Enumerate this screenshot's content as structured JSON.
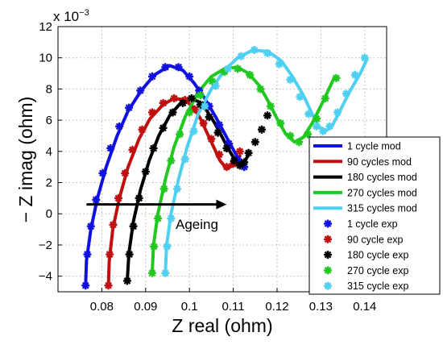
{
  "chart_data": {
    "type": "line",
    "title": "",
    "xlabel": "Z real (ohm)",
    "ylabel": "− Z imag (ohm)",
    "y_scale_label": "x 10",
    "y_scale_exponent": "−3",
    "xlim": [
      0.07,
      0.145
    ],
    "ylim": [
      -5,
      12
    ],
    "x_ticks": [
      0.08,
      0.09,
      0.1,
      0.11,
      0.12,
      0.13,
      0.14
    ],
    "x_tick_labels": [
      "0.08",
      "0.09",
      "0.1",
      "0.11",
      "0.12",
      "0.13",
      "0.14"
    ],
    "y_ticks": [
      -4,
      -2,
      0,
      2,
      4,
      6,
      8,
      10,
      12
    ],
    "y_tick_labels": [
      "−4",
      "−2",
      "0",
      "2",
      "4",
      "6",
      "8",
      "10",
      "12"
    ],
    "grid": true,
    "legend_position": "right",
    "annotation": {
      "text": "Ageing",
      "arrow_from": [
        0.0765,
        0.6
      ],
      "arrow_to": [
        0.1085,
        0.6
      ]
    },
    "series": [
      {
        "name": "1 cycle mod",
        "kind": "model",
        "color": "#1010e0",
        "x": [
          0.0763,
          0.0765,
          0.0775,
          0.079,
          0.081,
          0.0835,
          0.086,
          0.089,
          0.092,
          0.0955,
          0.0985,
          0.101,
          0.1035,
          0.106,
          0.1085,
          0.111,
          0.1125
        ],
        "y": [
          -4.6,
          -3.0,
          -1.0,
          1.0,
          3.0,
          5.0,
          6.6,
          7.9,
          8.9,
          9.5,
          9.2,
          8.4,
          7.4,
          6.2,
          4.9,
          3.6,
          3.0
        ]
      },
      {
        "name": "90 cycles mod",
        "kind": "model",
        "color": "#c01010",
        "x": [
          0.0815,
          0.0817,
          0.0825,
          0.084,
          0.086,
          0.0885,
          0.091,
          0.094,
          0.0965,
          0.099,
          0.101,
          0.1025,
          0.104,
          0.1055,
          0.107,
          0.1085,
          0.11,
          0.1115
        ],
        "y": [
          -4.6,
          -3.0,
          -1.0,
          1.0,
          3.0,
          4.8,
          6.1,
          7.0,
          7.4,
          7.3,
          6.8,
          6.1,
          5.2,
          4.3,
          3.4,
          2.9,
          3.1,
          3.7
        ]
      },
      {
        "name": "180 cycles mod",
        "kind": "model",
        "color": "#000000",
        "x": [
          0.0858,
          0.0862,
          0.0872,
          0.0888,
          0.0908,
          0.093,
          0.0955,
          0.098,
          0.1,
          0.102,
          0.104,
          0.1058,
          0.1075,
          0.109,
          0.1105,
          0.1115,
          0.1125,
          0.1135
        ],
        "y": [
          -4.3,
          -2.5,
          -0.5,
          1.5,
          3.4,
          5.0,
          6.3,
          7.1,
          7.4,
          7.2,
          6.6,
          5.8,
          4.9,
          4.1,
          3.4,
          3.1,
          3.3,
          3.8
        ]
      },
      {
        "name": "270 cycles mod",
        "kind": "model",
        "color": "#20c820",
        "x": [
          0.0915,
          0.0918,
          0.0928,
          0.0945,
          0.0965,
          0.099,
          0.102,
          0.105,
          0.108,
          0.111,
          0.1135,
          0.116,
          0.118,
          0.12,
          0.122,
          0.124,
          0.126,
          0.128,
          0.1305,
          0.133
        ],
        "y": [
          -3.8,
          -2.0,
          0.0,
          2.2,
          4.3,
          6.2,
          7.8,
          8.8,
          9.3,
          9.4,
          9.0,
          8.2,
          7.2,
          6.1,
          5.1,
          4.6,
          4.9,
          5.8,
          7.2,
          8.7
        ]
      },
      {
        "name": "315 cycles mod",
        "kind": "model",
        "color": "#50d0f0",
        "x": [
          0.0945,
          0.0948,
          0.0958,
          0.0975,
          0.0995,
          0.102,
          0.105,
          0.108,
          0.111,
          0.1145,
          0.118,
          0.121,
          0.1235,
          0.126,
          0.128,
          0.1295,
          0.131,
          0.1325,
          0.134,
          0.1365,
          0.139,
          0.1405
        ],
        "y": [
          -3.8,
          -2.0,
          0.0,
          2.2,
          4.3,
          6.4,
          8.0,
          9.2,
          10.0,
          10.5,
          10.4,
          9.8,
          8.8,
          7.6,
          6.4,
          5.6,
          5.3,
          5.6,
          6.4,
          7.8,
          9.0,
          9.9
        ]
      },
      {
        "name": "1 cycle exp",
        "kind": "exp",
        "color": "#1010e0",
        "x": [
          0.0763,
          0.0767,
          0.0775,
          0.0787,
          0.0802,
          0.082,
          0.084,
          0.0862,
          0.0888,
          0.0915,
          0.0945,
          0.0975,
          0.1,
          0.1022,
          0.1045,
          0.1068,
          0.109,
          0.111,
          0.1125
        ],
        "y": [
          -4.6,
          -2.6,
          -0.8,
          0.9,
          2.6,
          4.2,
          5.6,
          6.8,
          7.9,
          8.8,
          9.4,
          9.4,
          8.8,
          7.9,
          6.9,
          5.7,
          4.5,
          3.5,
          3.0
        ]
      },
      {
        "name": "90 cycle exp",
        "kind": "exp",
        "color": "#c01010",
        "x": [
          0.0815,
          0.0818,
          0.0826,
          0.0838,
          0.0853,
          0.087,
          0.0892,
          0.0915,
          0.094,
          0.0965,
          0.099,
          0.1012,
          0.1032,
          0.105,
          0.1068,
          0.1085,
          0.11,
          0.1115
        ],
        "y": [
          -4.6,
          -2.6,
          -0.7,
          1.0,
          2.6,
          4.1,
          5.4,
          6.5,
          7.1,
          7.4,
          7.3,
          6.7,
          5.8,
          4.8,
          3.8,
          3.0,
          3.2,
          4.0
        ]
      },
      {
        "name": "180 cycle exp",
        "kind": "exp",
        "color": "#000000",
        "x": [
          0.0858,
          0.0863,
          0.0872,
          0.0885,
          0.09,
          0.0918,
          0.094,
          0.0962,
          0.0985,
          0.1005,
          0.1025,
          0.1045,
          0.1065,
          0.1085,
          0.1102,
          0.1115,
          0.1125,
          0.1135,
          0.115,
          0.1165,
          0.1178
        ],
        "y": [
          -4.3,
          -2.6,
          -0.8,
          1.0,
          2.7,
          4.2,
          5.5,
          6.5,
          7.1,
          7.4,
          7.0,
          6.2,
          5.2,
          4.2,
          3.4,
          3.1,
          3.3,
          3.9,
          4.6,
          5.4,
          6.3
        ]
      },
      {
        "name": "270 cycle exp",
        "kind": "exp",
        "color": "#20c820",
        "x": [
          0.0915,
          0.0919,
          0.0928,
          0.0942,
          0.0958,
          0.0978,
          0.1,
          0.1025,
          0.1052,
          0.108,
          0.111,
          0.1138,
          0.1162,
          0.1185,
          0.1208,
          0.123,
          0.125,
          0.127,
          0.129,
          0.131,
          0.1335
        ],
        "y": [
          -3.8,
          -2.1,
          -0.3,
          1.6,
          3.4,
          5.1,
          6.5,
          7.6,
          8.5,
          9.1,
          9.3,
          8.9,
          8.0,
          6.9,
          5.8,
          5.0,
          4.6,
          5.1,
          6.1,
          7.4,
          8.7
        ]
      },
      {
        "name": "315 cycle exp",
        "kind": "exp",
        "color": "#50d0f0",
        "x": [
          0.0945,
          0.0949,
          0.0958,
          0.0972,
          0.099,
          0.101,
          0.1035,
          0.106,
          0.1088,
          0.1118,
          0.1148,
          0.1178,
          0.1205,
          0.123,
          0.1252,
          0.1272,
          0.129,
          0.1305,
          0.132,
          0.1338,
          0.1358,
          0.1378,
          0.14
        ],
        "y": [
          -3.8,
          -2.1,
          -0.3,
          1.6,
          3.5,
          5.3,
          6.9,
          8.2,
          9.3,
          10.1,
          10.5,
          10.3,
          9.6,
          8.6,
          7.5,
          6.4,
          5.6,
          5.3,
          5.6,
          6.5,
          7.7,
          8.9,
          10.0
        ]
      }
    ]
  }
}
